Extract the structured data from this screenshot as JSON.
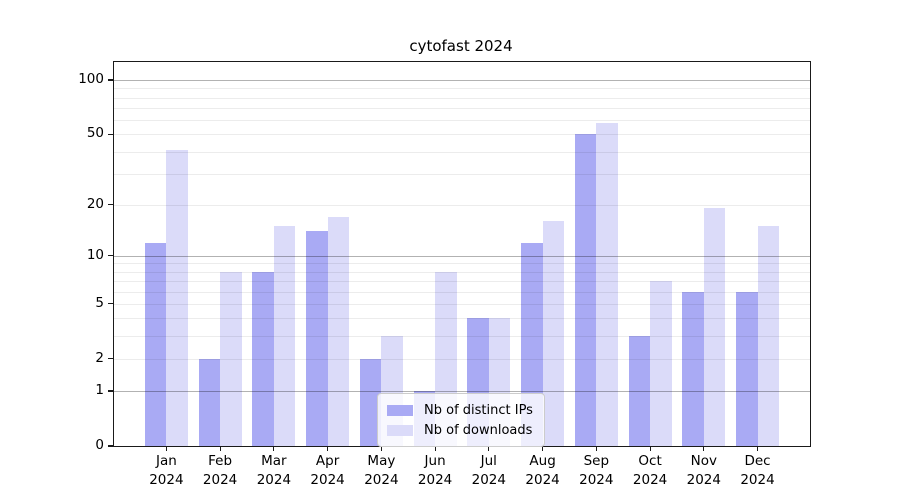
{
  "title": "cytofast 2024",
  "colors": {
    "ips": "#a9aaf4",
    "downloads": "#dbdbf9",
    "axis": "#1a1a1a"
  },
  "legend": {
    "entries": [
      {
        "label": "Nb of distinct IPs",
        "series": "ips"
      },
      {
        "label": "Nb of downloads",
        "series": "downloads"
      }
    ]
  },
  "chart_data": {
    "type": "bar",
    "title": "cytofast 2024",
    "scale": "log1p",
    "categories": [
      "Jan 2024",
      "Feb 2024",
      "Mar 2024",
      "Apr 2024",
      "May 2024",
      "Jun 2024",
      "Jul 2024",
      "Aug 2024",
      "Sep 2024",
      "Oct 2024",
      "Nov 2024",
      "Dec 2024"
    ],
    "series": [
      {
        "name": "Nb of distinct IPs",
        "key": "ips",
        "values": [
          12,
          2,
          8,
          14,
          2,
          1,
          4,
          12,
          50,
          3,
          6,
          6
        ]
      },
      {
        "name": "Nb of downloads",
        "key": "downloads",
        "values": [
          41,
          8,
          15,
          17,
          3,
          8,
          4,
          16,
          58,
          7,
          19,
          15
        ]
      }
    ],
    "yticks": [
      0,
      1,
      2,
      5,
      10,
      20,
      50,
      100
    ],
    "ytick_labels": [
      "0",
      "1",
      "2",
      "5",
      "10",
      "20",
      "50",
      "100"
    ],
    "major_grid_values": [
      1,
      10,
      100
    ],
    "minor_grid_values": [
      2,
      3,
      4,
      5,
      6,
      7,
      8,
      9,
      20,
      30,
      40,
      50,
      60,
      70,
      80,
      90
    ],
    "ylim": [
      0,
      126
    ],
    "legend_position": "lower center",
    "grid": true
  }
}
